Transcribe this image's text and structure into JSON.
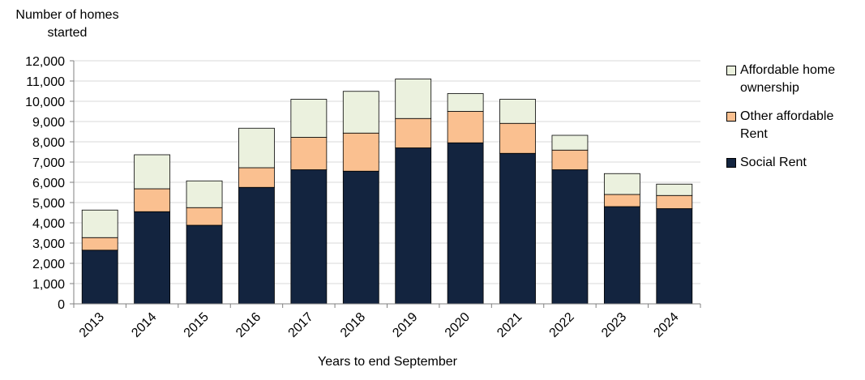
{
  "chart_data": {
    "type": "bar",
    "stacked": true,
    "title": "",
    "ylabel_lines": [
      "Number of homes",
      "started"
    ],
    "xlabel": "Years to end September",
    "categories": [
      "2013",
      "2014",
      "2015",
      "2016",
      "2017",
      "2018",
      "2019",
      "2020",
      "2021",
      "2022",
      "2023",
      "2024"
    ],
    "series": [
      {
        "name": "Social Rent",
        "color": "#13243f",
        "values": [
          2650,
          4550,
          3880,
          5750,
          6620,
          6550,
          7700,
          7950,
          7430,
          6620,
          4800,
          4700
        ]
      },
      {
        "name": "Other affordable Rent",
        "color": "#fac090",
        "values": [
          620,
          1130,
          870,
          970,
          1600,
          1880,
          1450,
          1550,
          1480,
          970,
          600,
          650
        ]
      },
      {
        "name": "Affordable home ownership",
        "color": "#ebf1de",
        "values": [
          1360,
          1680,
          1320,
          1950,
          1880,
          2060,
          1950,
          880,
          1190,
          730,
          1030,
          560
        ]
      }
    ],
    "legend": [
      {
        "lines": [
          "Affordable home",
          "ownership"
        ],
        "color": "#ebf1de"
      },
      {
        "lines": [
          "Other affordable",
          "Rent"
        ],
        "color": "#fac090"
      },
      {
        "lines": [
          "Social Rent"
        ],
        "color": "#13243f"
      }
    ],
    "ylim": [
      0,
      12000
    ],
    "yticks": [
      "0",
      "1,000",
      "2,000",
      "3,000",
      "4,000",
      "5,000",
      "6,000",
      "7,000",
      "8,000",
      "9,000",
      "10,000",
      "11,000",
      "12,000"
    ],
    "grid": true,
    "legend_position": "right"
  }
}
